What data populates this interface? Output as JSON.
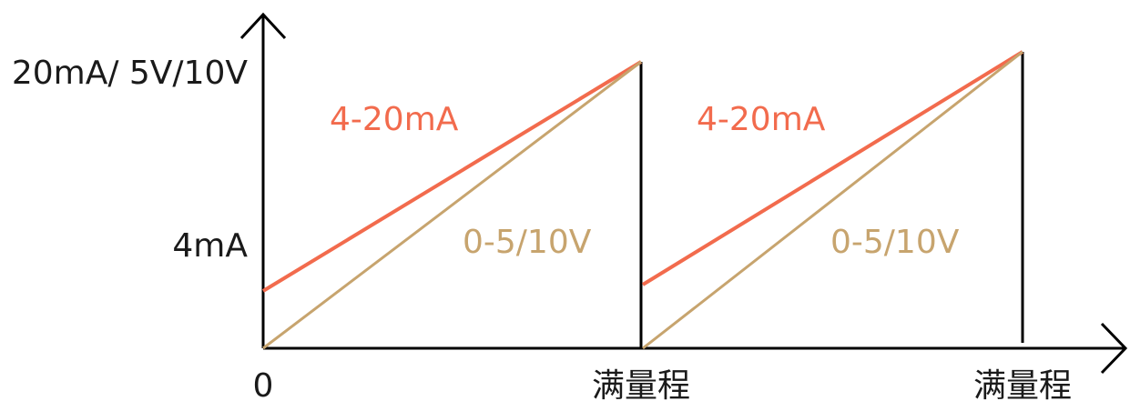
{
  "chart_data": {
    "type": "line",
    "y_tick_labels": [
      "20mA/ 5V/10V",
      "4mA"
    ],
    "x_tick_labels": [
      "0",
      "满量程",
      "满量程"
    ],
    "cycles": [
      {
        "x": [
          0,
          1
        ],
        "series": [
          {
            "name": "4-20mA",
            "values": [
              4,
              20
            ]
          },
          {
            "name": "0-5/10V",
            "values": [
              0,
              20
            ]
          }
        ]
      },
      {
        "x": [
          1,
          2
        ],
        "series": [
          {
            "name": "4-20mA",
            "values": [
              4,
              20
            ]
          },
          {
            "name": "0-5/10V",
            "values": [
              0,
              20
            ]
          }
        ]
      }
    ],
    "colors": {
      "4-20mA": "#f26b4d",
      "0-5/10V": "#c7a46e",
      "axis": "#000000"
    },
    "grid": false,
    "legend": "none"
  }
}
